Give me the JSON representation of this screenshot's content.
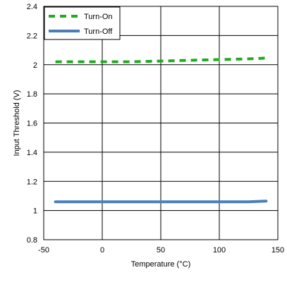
{
  "chart_data": {
    "type": "line",
    "title": "",
    "xlabel": "Temperature (°C)",
    "ylabel": "Input Threshold (V)",
    "xlim": [
      -50,
      150
    ],
    "ylim": [
      0.8,
      2.4
    ],
    "xticks": [
      -50,
      0,
      50,
      100,
      150
    ],
    "yticks": [
      0.8,
      1,
      1.2,
      1.4,
      1.6,
      1.8,
      2,
      2.2,
      2.4
    ],
    "xtick_labels": [
      "-50",
      "0",
      "50",
      "100",
      "150"
    ],
    "ytick_labels": [
      "0.8",
      "1",
      "1.2",
      "1.4",
      "1.6",
      "1.8",
      "2",
      "2.2",
      "2.4"
    ],
    "grid": true,
    "legend_position": "top-left",
    "series": [
      {
        "name": "Turn-On",
        "style": "dashed",
        "color": "#22aa22",
        "x": [
          -40,
          -20,
          0,
          25,
          50,
          75,
          100,
          125,
          140
        ],
        "y": [
          2.02,
          2.02,
          2.02,
          2.02,
          2.025,
          2.03,
          2.035,
          2.04,
          2.045
        ]
      },
      {
        "name": "Turn-Off",
        "style": "solid",
        "color": "#4a7ebb",
        "x": [
          -40,
          -20,
          0,
          25,
          50,
          75,
          100,
          125,
          140
        ],
        "y": [
          1.06,
          1.06,
          1.06,
          1.06,
          1.06,
          1.06,
          1.06,
          1.06,
          1.065
        ]
      }
    ]
  }
}
